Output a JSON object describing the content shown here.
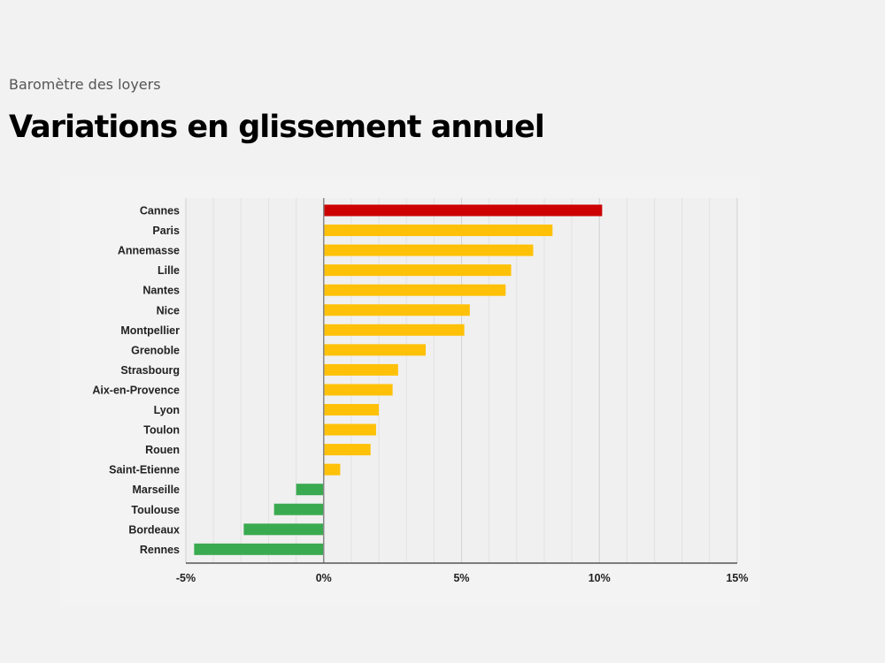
{
  "header": {
    "subtitle": "Baromètre des loyers",
    "title": "Variations en glissement annuel"
  },
  "colors": {
    "top": "#cc0000",
    "positive": "#ffc107",
    "negative": "#3aaa50",
    "grid": "#d6d6d6",
    "axis": "#888888"
  },
  "chart_data": {
    "type": "bar",
    "orientation": "horizontal",
    "title": "Variations en glissement annuel",
    "xlabel": "",
    "ylabel": "",
    "xlim": [
      -5,
      15
    ],
    "xticks": [
      {
        "value": -5,
        "label": "-5%"
      },
      {
        "value": 0,
        "label": "0%"
      },
      {
        "value": 5,
        "label": "5%"
      },
      {
        "value": 10,
        "label": "10%"
      },
      {
        "value": 15,
        "label": "15%"
      }
    ],
    "grid": true,
    "categories": [
      "Cannes",
      "Paris",
      "Annemasse",
      "Lille",
      "Nantes",
      "Nice",
      "Montpellier",
      "Grenoble",
      "Strasbourg",
      "Aix-en-Provence",
      "Lyon",
      "Toulon",
      "Rouen",
      "Saint-Etienne",
      "Marseille",
      "Toulouse",
      "Bordeaux",
      "Rennes"
    ],
    "values": [
      10.1,
      8.3,
      7.6,
      6.8,
      6.6,
      5.3,
      5.1,
      3.7,
      2.7,
      2.5,
      2.0,
      1.9,
      1.7,
      0.6,
      -1.0,
      -1.8,
      -2.9,
      -4.7
    ],
    "value_unit": "%"
  }
}
